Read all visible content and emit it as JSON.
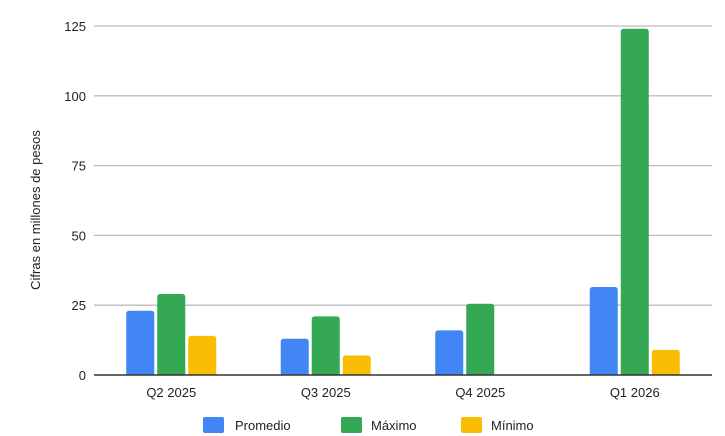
{
  "chart_data": {
    "type": "bar",
    "categories": [
      "Q2 2025",
      "Q3 2025",
      "Q4 2025",
      "Q1 2026"
    ],
    "series": [
      {
        "name": "Promedio",
        "color": "#4285F4",
        "values": [
          23,
          13,
          16,
          31.5
        ]
      },
      {
        "name": "Máximo",
        "color": "#34A853",
        "values": [
          29,
          21,
          25.5,
          124
        ]
      },
      {
        "name": "Mínimo",
        "color": "#FBBC04",
        "values": [
          14,
          7,
          null,
          9
        ]
      }
    ],
    "ylabel": "Cifras en millones de pesos",
    "ylim": [
      0,
      125
    ],
    "yticks": [
      0,
      25,
      50,
      75,
      100,
      125
    ],
    "grid": true,
    "legend_position": "bottom"
  }
}
